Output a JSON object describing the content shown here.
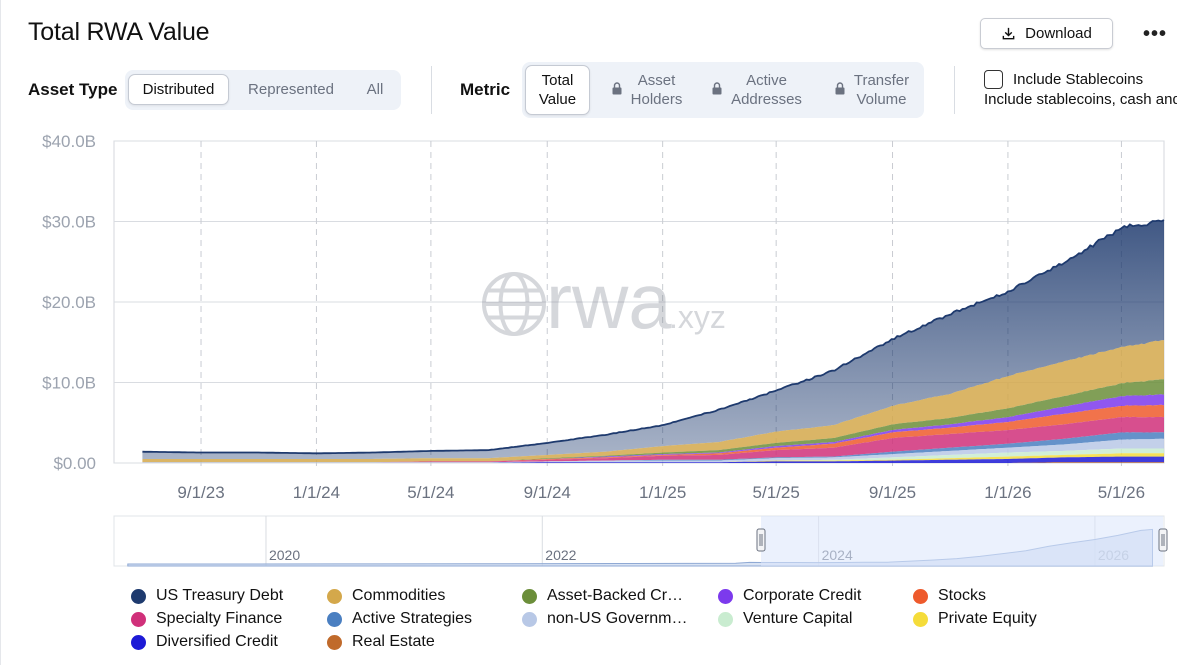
{
  "header": {
    "title": "Total RWA Value",
    "download_label": "Download",
    "more_label": "•••"
  },
  "asset_type": {
    "label": "Asset Type",
    "options": [
      "Distributed",
      "Represented",
      "All"
    ],
    "selected": "Distributed"
  },
  "metric": {
    "label": "Metric",
    "options": [
      {
        "line1": "Total",
        "line2": "Value",
        "locked": false,
        "active": true
      },
      {
        "line1": "Asset",
        "line2": "Holders",
        "locked": true,
        "active": false
      },
      {
        "line1": "Active",
        "line2": "Addresses",
        "locked": true,
        "active": false
      },
      {
        "line1": "Transfer",
        "line2": "Volume",
        "locked": true,
        "active": false
      }
    ]
  },
  "stablecoins": {
    "label": "Include Stablecoins",
    "description": "Include stablecoins, cash and",
    "checked": false
  },
  "watermark": {
    "brand": "rwa",
    "suffix": ".xyz"
  },
  "chart_data": {
    "type": "area",
    "stacked": true,
    "y_ticks": [
      "$0.00",
      "$10.0B",
      "$20.0B",
      "$30.0B",
      "$40.0B"
    ],
    "ylim": [
      0,
      40
    ],
    "y_unit": "$B",
    "x_tick_labels": [
      "9/1/23",
      "1/1/24",
      "5/1/24",
      "9/1/24",
      "1/1/25",
      "5/1/25",
      "9/1/25",
      "1/1/26",
      "5/1/26"
    ],
    "x": [
      "7/1/23",
      "9/1/23",
      "11/1/23",
      "1/1/24",
      "3/1/24",
      "5/1/24",
      "7/1/24",
      "9/1/24",
      "11/1/24",
      "1/1/25",
      "3/1/25",
      "5/1/25",
      "7/1/25",
      "9/1/25",
      "11/1/25",
      "1/1/26",
      "3/1/26",
      "5/1/26",
      "6/15/26"
    ],
    "series": [
      {
        "name": "US Treasury Debt",
        "color": "#1e3a6e",
        "values": [
          0.9,
          0.8,
          0.8,
          0.7,
          0.8,
          0.9,
          1.0,
          1.5,
          2.1,
          2.6,
          4.0,
          5.1,
          6.8,
          8.3,
          9.9,
          10.5,
          12.3,
          14.8,
          14.8
        ]
      },
      {
        "name": "Commodities",
        "color": "#d4a84b",
        "values": [
          0.4,
          0.4,
          0.4,
          0.4,
          0.4,
          0.4,
          0.4,
          0.4,
          0.5,
          0.8,
          1.0,
          1.4,
          1.6,
          2.3,
          3.0,
          4.0,
          4.3,
          4.5,
          4.9
        ]
      },
      {
        "name": "Asset-Backed Cr…",
        "color": "#6b8e3a",
        "values": [
          0.0,
          0.0,
          0.0,
          0.0,
          0.0,
          0.0,
          0.0,
          0.1,
          0.1,
          0.2,
          0.3,
          0.4,
          0.5,
          0.7,
          0.8,
          1.1,
          1.3,
          1.6,
          1.9
        ]
      },
      {
        "name": "Corporate Credit",
        "color": "#7c3aed",
        "values": [
          0.0,
          0.0,
          0.0,
          0.0,
          0.0,
          0.0,
          0.0,
          0.0,
          0.1,
          0.1,
          0.1,
          0.2,
          0.2,
          0.3,
          0.4,
          0.6,
          0.9,
          1.2,
          1.3
        ]
      },
      {
        "name": "Stocks",
        "color": "#ee5a2c",
        "values": [
          0.0,
          0.0,
          0.0,
          0.0,
          0.0,
          0.0,
          0.0,
          0.1,
          0.1,
          0.1,
          0.2,
          0.3,
          0.5,
          0.7,
          0.8,
          1.0,
          1.3,
          1.4,
          1.5
        ]
      },
      {
        "name": "Specialty Finance",
        "color": "#d0307a",
        "values": [
          0.0,
          0.0,
          0.0,
          0.0,
          0.0,
          0.1,
          0.1,
          0.2,
          0.3,
          0.5,
          0.6,
          0.9,
          1.1,
          1.7,
          1.7,
          1.7,
          1.8,
          1.9,
          1.9
        ]
      },
      {
        "name": "Active Strategies",
        "color": "#4a7fc1",
        "values": [
          0.0,
          0.0,
          0.0,
          0.0,
          0.0,
          0.0,
          0.0,
          0.0,
          0.0,
          0.1,
          0.1,
          0.1,
          0.1,
          0.3,
          0.4,
          0.5,
          0.7,
          0.9,
          0.8
        ]
      },
      {
        "name": "non-US Governm…",
        "color": "#b8c8e6",
        "values": [
          0.1,
          0.1,
          0.1,
          0.1,
          0.1,
          0.1,
          0.1,
          0.1,
          0.2,
          0.2,
          0.2,
          0.3,
          0.3,
          0.4,
          0.5,
          0.6,
          0.8,
          1.1,
          1.2
        ]
      },
      {
        "name": "Venture Capital",
        "color": "#c9ecd0",
        "values": [
          0.0,
          0.0,
          0.0,
          0.0,
          0.0,
          0.0,
          0.0,
          0.0,
          0.0,
          0.0,
          0.0,
          0.0,
          0.1,
          0.3,
          0.4,
          0.5,
          0.5,
          0.6,
          0.6
        ]
      },
      {
        "name": "Private Equity",
        "color": "#f5dc3a",
        "values": [
          0.0,
          0.0,
          0.0,
          0.0,
          0.0,
          0.0,
          0.0,
          0.0,
          0.0,
          0.0,
          0.0,
          0.1,
          0.1,
          0.1,
          0.2,
          0.3,
          0.3,
          0.4,
          0.4
        ]
      },
      {
        "name": "Diversified Credit",
        "color": "#1d1ad6",
        "values": [
          0.0,
          0.0,
          0.0,
          0.0,
          0.0,
          0.0,
          0.0,
          0.1,
          0.1,
          0.1,
          0.1,
          0.2,
          0.2,
          0.3,
          0.4,
          0.5,
          0.6,
          0.7,
          0.7
        ]
      },
      {
        "name": "Real Estate",
        "color": "#c06a2b",
        "values": [
          0.0,
          0.0,
          0.0,
          0.0,
          0.0,
          0.0,
          0.0,
          0.0,
          0.0,
          0.0,
          0.0,
          0.0,
          0.0,
          0.0,
          0.0,
          0.0,
          0.1,
          0.1,
          0.1
        ]
      }
    ],
    "navigator": {
      "x_tick_labels": [
        "2020",
        "2022",
        "2024",
        "2026"
      ],
      "selected_range": [
        "7/1/23",
        "6/15/26"
      ]
    },
    "grid": true,
    "legend_position": "bottom"
  }
}
